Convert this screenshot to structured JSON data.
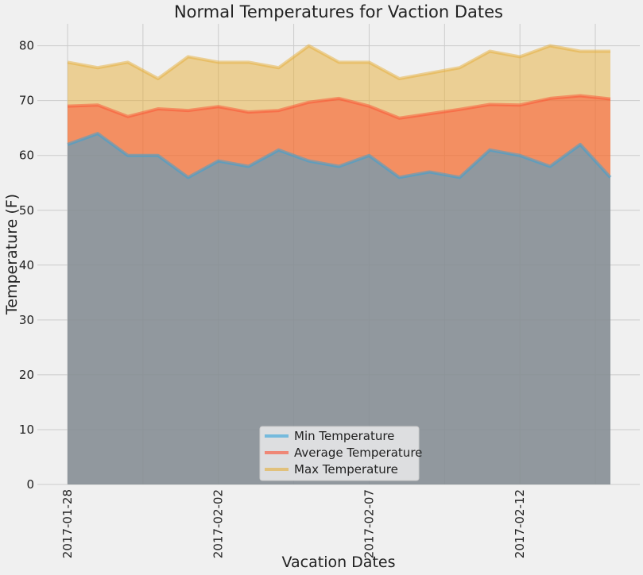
{
  "chart_data": {
    "type": "area",
    "title": "Normal Temperatures for Vaction Dates",
    "xlabel": "Vacation Dates",
    "ylabel": "Temperature (F)",
    "ylim": [
      0,
      84
    ],
    "yticks": [
      0,
      10,
      20,
      30,
      40,
      50,
      60,
      70,
      80
    ],
    "x": [
      "2017-01-28",
      "2017-01-29",
      "2017-01-30",
      "2017-01-31",
      "2017-02-01",
      "2017-02-02",
      "2017-02-03",
      "2017-02-04",
      "2017-02-05",
      "2017-02-06",
      "2017-02-07",
      "2017-02-08",
      "2017-02-09",
      "2017-02-10",
      "2017-02-11",
      "2017-02-12",
      "2017-02-13",
      "2017-02-14",
      "2017-02-15"
    ],
    "xtick_labels": [
      "2017-01-28",
      "2017-02-02",
      "2017-02-07",
      "2017-02-12"
    ],
    "grid": true,
    "legend_position": "bottom-center",
    "series": [
      {
        "name": "Min Temperature",
        "color": "#30a2da",
        "values": [
          62,
          64,
          60,
          60,
          56,
          59,
          58,
          61,
          59,
          58,
          60,
          56,
          57,
          56,
          61,
          60,
          58,
          62,
          56
        ]
      },
      {
        "name": "Average Temperature",
        "color": "#fc4f30",
        "values": [
          69.0,
          69.2,
          67.1,
          68.5,
          68.2,
          68.9,
          67.9,
          68.2,
          69.7,
          70.4,
          69.0,
          66.8,
          67.6,
          68.4,
          69.3,
          69.2,
          70.4,
          70.9,
          70.3
        ]
      },
      {
        "name": "Max Temperature",
        "color": "#e5ae38",
        "values": [
          77,
          76,
          77,
          74,
          78,
          77,
          77,
          76,
          80,
          77,
          77,
          74,
          75,
          76,
          79,
          78,
          80,
          79,
          79
        ]
      }
    ]
  }
}
